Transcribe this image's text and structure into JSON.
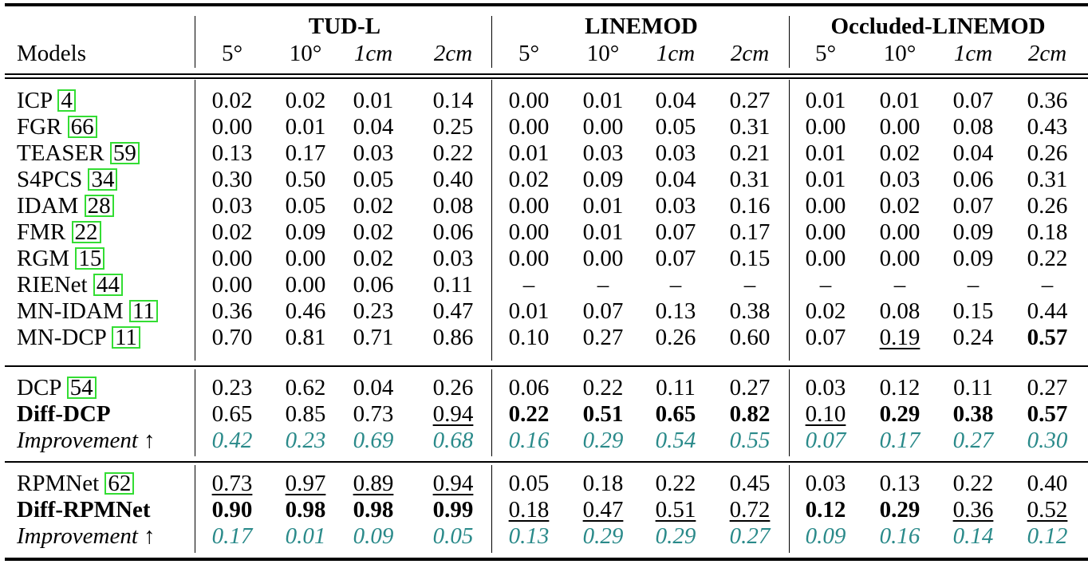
{
  "header": {
    "groups": [
      "TUD-L",
      "LINEMOD",
      "Occluded-LINEMOD"
    ],
    "models_label": "Models",
    "metrics": [
      "5°",
      "10°",
      "1cm",
      "2cm"
    ]
  },
  "rows": [
    {
      "name": "ICP ",
      "ref": "4",
      "values": [
        "0.02",
        "0.02",
        "0.01",
        "0.14",
        "0.00",
        "0.01",
        "0.04",
        "0.27",
        "0.01",
        "0.01",
        "0.07",
        "0.36"
      ]
    },
    {
      "name": "FGR ",
      "ref": "66",
      "values": [
        "0.00",
        "0.01",
        "0.04",
        "0.25",
        "0.00",
        "0.00",
        "0.05",
        "0.31",
        "0.00",
        "0.00",
        "0.08",
        "0.43"
      ]
    },
    {
      "name": "TEASER ",
      "ref": "59",
      "values": [
        "0.13",
        "0.17",
        "0.03",
        "0.22",
        "0.01",
        "0.03",
        "0.03",
        "0.21",
        "0.01",
        "0.02",
        "0.04",
        "0.26"
      ]
    },
    {
      "name": "S4PCS ",
      "ref": "34",
      "values": [
        "0.30",
        "0.50",
        "0.05",
        "0.40",
        "0.02",
        "0.09",
        "0.04",
        "0.31",
        "0.01",
        "0.03",
        "0.06",
        "0.31"
      ]
    },
    {
      "name": "IDAM ",
      "ref": "28",
      "values": [
        "0.03",
        "0.05",
        "0.02",
        "0.08",
        "0.00",
        "0.01",
        "0.03",
        "0.16",
        "0.00",
        "0.02",
        "0.07",
        "0.26"
      ]
    },
    {
      "name": "FMR ",
      "ref": "22",
      "values": [
        "0.02",
        "0.09",
        "0.02",
        "0.06",
        "0.00",
        "0.01",
        "0.07",
        "0.17",
        "0.00",
        "0.00",
        "0.09",
        "0.18"
      ]
    },
    {
      "name": "RGM ",
      "ref": "15",
      "values": [
        "0.00",
        "0.00",
        "0.02",
        "0.03",
        "0.00",
        "0.00",
        "0.07",
        "0.15",
        "0.00",
        "0.00",
        "0.09",
        "0.22"
      ]
    },
    {
      "name": "RIENet ",
      "ref": "44",
      "values": [
        "0.00",
        "0.00",
        "0.06",
        "0.11",
        "–",
        "–",
        "–",
        "–",
        "–",
        "–",
        "–",
        "–"
      ]
    },
    {
      "name": "MN-IDAM ",
      "ref": "11",
      "values": [
        "0.36",
        "0.46",
        "0.23",
        "0.47",
        "0.01",
        "0.07",
        "0.13",
        "0.38",
        "0.02",
        "0.08",
        "0.15",
        "0.44"
      ]
    },
    {
      "name": "MN-DCP ",
      "ref": "11",
      "values": [
        "0.70",
        "0.81",
        "0.71",
        "0.86",
        "0.10",
        "0.27",
        "0.26",
        "0.60",
        "0.07",
        "0.19",
        "0.24",
        "0.57"
      ],
      "underline": [
        9
      ],
      "bold": [
        11
      ]
    },
    {
      "name": "DCP ",
      "ref": "54",
      "values": [
        "0.23",
        "0.62",
        "0.04",
        "0.26",
        "0.06",
        "0.22",
        "0.11",
        "0.27",
        "0.03",
        "0.12",
        "0.11",
        "0.27"
      ]
    },
    {
      "name": "Diff-DCP",
      "bold_name": true,
      "values": [
        "0.65",
        "0.85",
        "0.73",
        "0.94",
        "0.22",
        "0.51",
        "0.65",
        "0.82",
        "0.10",
        "0.29",
        "0.38",
        "0.57"
      ],
      "underline": [
        3,
        8
      ],
      "bold": [
        4,
        5,
        6,
        7,
        9,
        10,
        11
      ]
    },
    {
      "name": "Improvement ↑",
      "improvement": true,
      "values": [
        "0.42",
        "0.23",
        "0.69",
        "0.68",
        "0.16",
        "0.29",
        "0.54",
        "0.55",
        "0.07",
        "0.17",
        "0.27",
        "0.30"
      ]
    },
    {
      "name": "RPMNet ",
      "ref": "62",
      "values": [
        "0.73",
        "0.97",
        "0.89",
        "0.94",
        "0.05",
        "0.18",
        "0.22",
        "0.45",
        "0.03",
        "0.13",
        "0.22",
        "0.40"
      ],
      "underline": [
        0,
        1,
        2,
        3
      ]
    },
    {
      "name": "Diff-RPMNet",
      "bold_name": true,
      "values": [
        "0.90",
        "0.98",
        "0.98",
        "0.99",
        "0.18",
        "0.47",
        "0.51",
        "0.72",
        "0.12",
        "0.29",
        "0.36",
        "0.52"
      ],
      "underline": [
        4,
        5,
        6,
        7,
        10,
        11
      ],
      "bold": [
        0,
        1,
        2,
        3,
        8,
        9
      ]
    },
    {
      "name": "Improvement ↑",
      "improvement": true,
      "values": [
        "0.17",
        "0.01",
        "0.09",
        "0.05",
        "0.13",
        "0.29",
        "0.29",
        "0.27",
        "0.09",
        "0.16",
        "0.14",
        "0.12"
      ]
    }
  ],
  "colors": {
    "improvement": "#2a8a8a",
    "citation_box": "#33dd33"
  }
}
